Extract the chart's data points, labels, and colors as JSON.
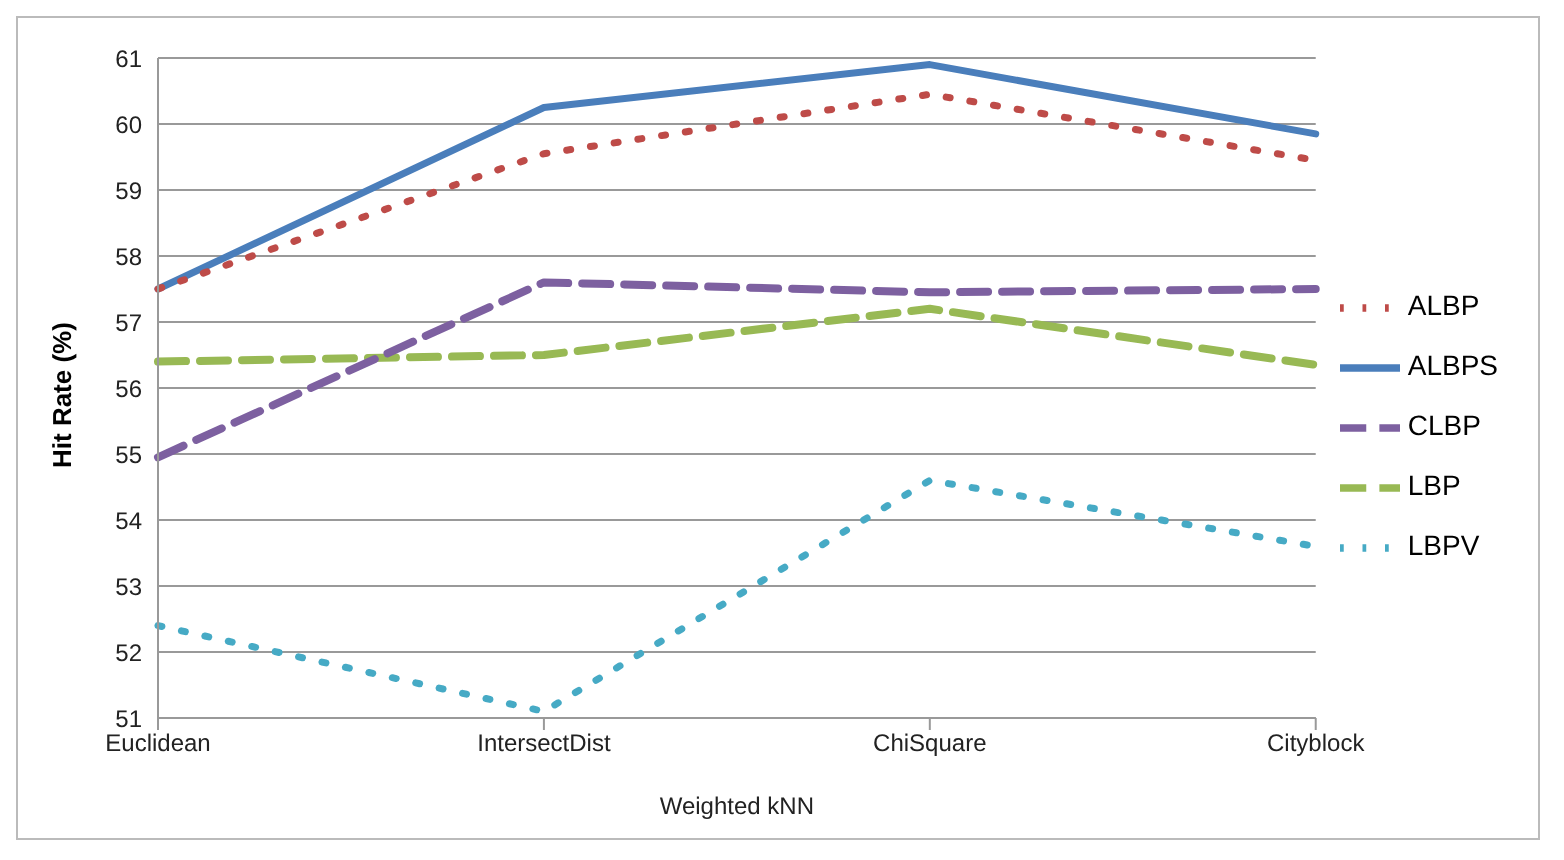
{
  "chart_data": {
    "type": "line",
    "xlabel": "Weighted kNN",
    "ylabel": "Hit Rate (%)",
    "categories": [
      "Euclidean",
      "IntersectDist",
      "ChiSquare",
      "Cityblock"
    ],
    "series": [
      {
        "name": "ALBPS",
        "color": "#4a7ebb",
        "line_style": "solid",
        "values": [
          57.5,
          60.25,
          60.9,
          59.85
        ]
      },
      {
        "name": "ALBP",
        "color": "#be4b48",
        "line_style": "dotted",
        "values": [
          57.5,
          59.55,
          60.45,
          59.45
        ]
      },
      {
        "name": "LBP",
        "color": "#98b954",
        "line_style": "dashed",
        "values": [
          56.4,
          56.5,
          57.2,
          56.35
        ]
      },
      {
        "name": "CLBP",
        "color": "#7d60a0",
        "line_style": "dashed",
        "values": [
          54.95,
          57.6,
          57.45,
          57.5
        ]
      },
      {
        "name": "LBPV",
        "color": "#46aac5",
        "line_style": "dotted",
        "values": [
          52.4,
          51.1,
          54.6,
          53.6
        ]
      }
    ],
    "ylim": [
      51,
      61
    ],
    "yticks": [
      51,
      52,
      53,
      54,
      55,
      56,
      57,
      58,
      59,
      60,
      61
    ],
    "grid": "y",
    "legend": "right",
    "marker": "none"
  }
}
